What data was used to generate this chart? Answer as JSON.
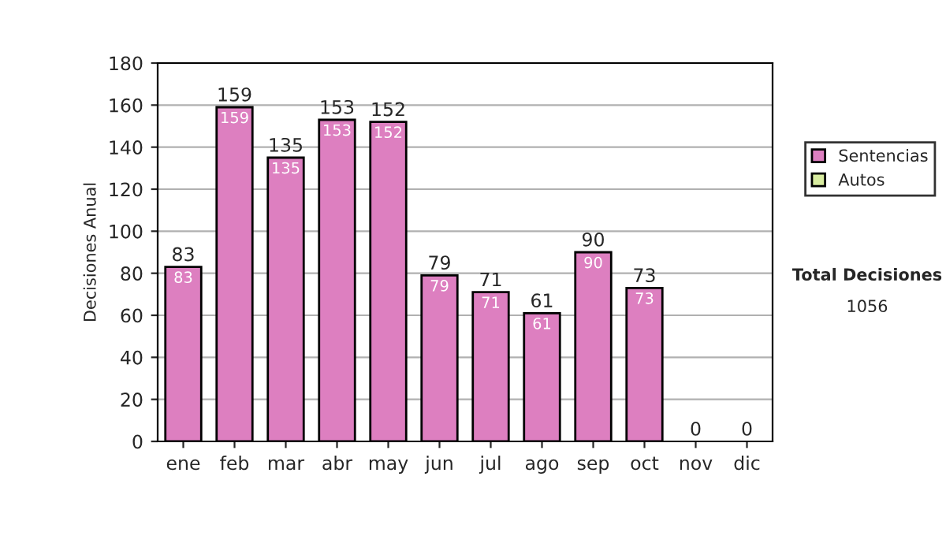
{
  "chart_data": {
    "type": "bar",
    "stacked": true,
    "ylabel": "Decisiones Anual",
    "categories": [
      "ene",
      "feb",
      "mar",
      "abr",
      "may",
      "jun",
      "jul",
      "ago",
      "sep",
      "oct",
      "nov",
      "dic"
    ],
    "series": [
      {
        "name": "Sentencias",
        "color": "#dd7fc0",
        "values": [
          83,
          159,
          135,
          153,
          152,
          79,
          71,
          61,
          90,
          73,
          null,
          null
        ],
        "value_labels": [
          "83",
          "159",
          "135",
          "153",
          "152",
          "79",
          "71",
          "61",
          "90",
          "73",
          null,
          null
        ]
      },
      {
        "name": "Autos",
        "color": "#d8eca0",
        "values": [
          null,
          null,
          null,
          null,
          null,
          null,
          null,
          null,
          null,
          null,
          null,
          null
        ]
      }
    ],
    "totals": [
      "83",
      "159",
      "135",
      "153",
      "152",
      "79",
      "71",
      "61",
      "90",
      "73",
      "0",
      "0"
    ],
    "ylim": [
      0,
      180
    ],
    "yticks": [
      0,
      20,
      40,
      60,
      80,
      100,
      120,
      140,
      160,
      180
    ],
    "grid": "y",
    "legend": "right",
    "annotations": [
      "Total Decisiones",
      "1056"
    ]
  }
}
